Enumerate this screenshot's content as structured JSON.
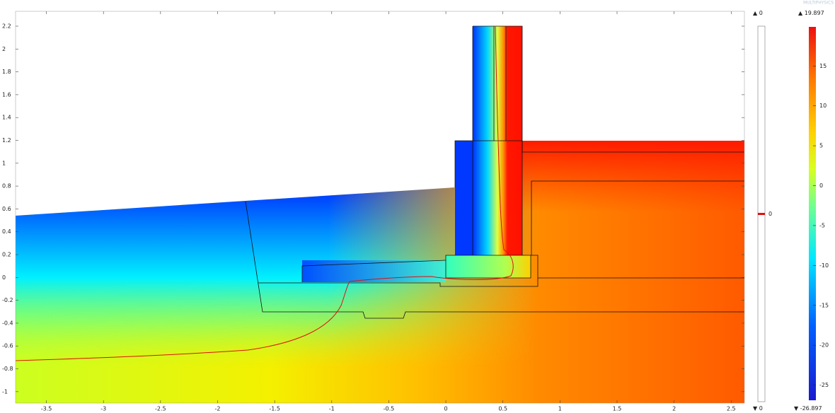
{
  "chart_data": {
    "type": "surface",
    "xlim": [
      -3.77,
      2.616
    ],
    "ylim": [
      -1.1,
      2.33
    ],
    "xticks": [
      -3.5,
      -3,
      -2.5,
      -2,
      -1.5,
      -1,
      -0.5,
      0,
      0.5,
      1,
      1.5,
      2,
      2.5
    ],
    "yticks": [
      -1,
      -0.8,
      -0.6,
      -0.4,
      -0.2,
      0,
      0.2,
      0.4,
      0.6,
      0.8,
      1,
      1.2,
      1.4,
      1.6,
      1.8,
      2,
      2.2
    ],
    "color_legend": {
      "min": -26.897,
      "max": 19.897,
      "ticks": [
        -25,
        -20,
        -15,
        -10,
        -5,
        0,
        5,
        10,
        15
      ]
    },
    "contour_legend": {
      "min": 0,
      "max": 0,
      "levels": [
        0
      ],
      "color": "#e01010"
    },
    "logo": "MULTIPHYSICS"
  }
}
